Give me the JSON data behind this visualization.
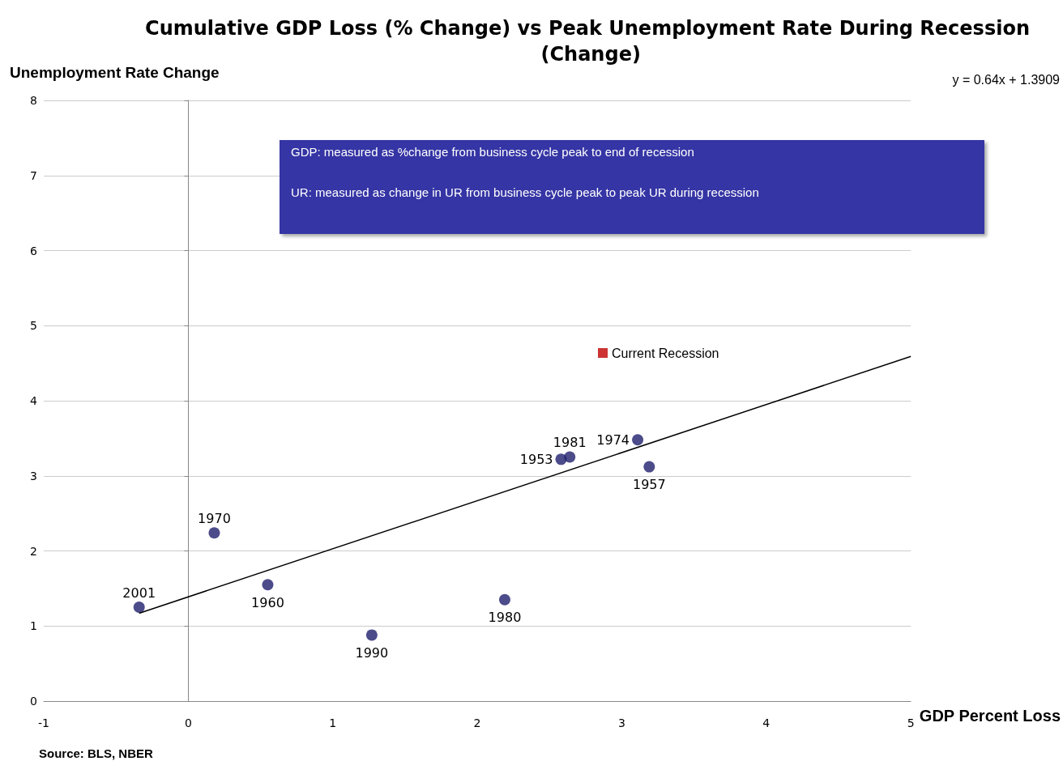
{
  "chart_data": {
    "type": "scatter",
    "title": "Cumulative GDP Loss (% Change) vs Peak Unemployment Rate During Recession (Change)",
    "xlabel": "GDP Percent Loss",
    "ylabel": "Unemployment Rate Change",
    "series": [
      {
        "color": "#1f1f6e",
        "x": [
          -0.34,
          0.18,
          0.55,
          1.27,
          2.19,
          2.58,
          2.64,
          3.11,
          3.19
        ],
        "values": [
          1.25,
          2.24,
          1.55,
          0.88,
          1.35,
          3.22,
          3.25,
          3.48,
          3.12
        ]
      },
      {
        "type": "line",
        "color": "#000000",
        "marker": "none",
        "x": [
          -0.34,
          5
        ],
        "values": [
          1.17,
          4.59
        ]
      },
      {
        "name": "Current Recession",
        "color": "#c00000",
        "marker": "square"
      }
    ],
    "xlim": [
      -1,
      5
    ],
    "xticks": [
      -1,
      0,
      1,
      2,
      3,
      4,
      5
    ],
    "ylim": [
      0,
      8
    ],
    "yticks": [
      0,
      1,
      2,
      3,
      4,
      5,
      6,
      7,
      8
    ],
    "grid": "y",
    "legend": "right",
    "marker": "circle",
    "annotations": [
      {
        "text": "2001",
        "x": -0.34,
        "y": 1.25
      },
      {
        "text": "1970",
        "x": 0.18,
        "y": 2.24
      },
      {
        "text": "1960",
        "x": 0.55,
        "y": 1.55
      },
      {
        "text": "1990",
        "x": 1.27,
        "y": 0.88
      },
      {
        "text": "1980",
        "x": 2.19,
        "y": 1.35
      },
      {
        "text": "1953",
        "x": 2.58,
        "y": 3.22
      },
      {
        "text": "1981",
        "x": 2.64,
        "y": 3.25
      },
      {
        "text": "1974",
        "x": 3.11,
        "y": 3.48
      },
      {
        "text": "1957",
        "x": 3.19,
        "y": 3.12
      },
      "y = 0.64x + 1.3909",
      "GDP: measured as %change from business cycle peak to end of recession",
      "UR: measured as change in UR from business cycle peak to peak UR during recession",
      "Source: BLS, NBER"
    ]
  }
}
